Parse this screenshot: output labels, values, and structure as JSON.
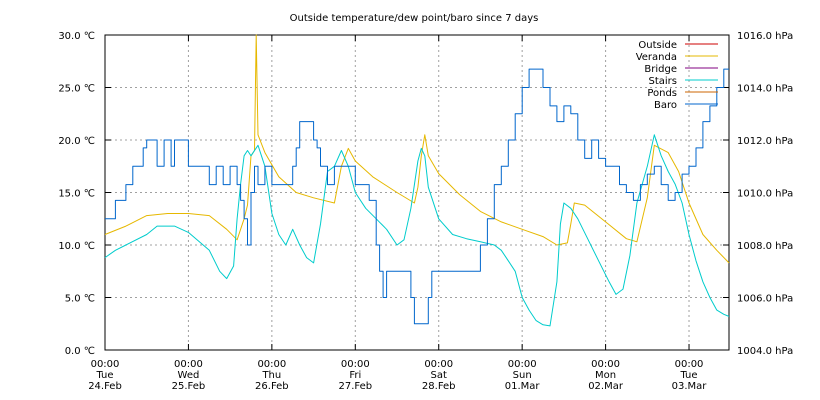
{
  "chart_data": {
    "type": "line",
    "title": "Outside temperature/dew point/baro since 7 days",
    "x_ticks": [
      {
        "t": 0,
        "time": "00:00",
        "day": "Tue",
        "date": "24.Feb"
      },
      {
        "t": 24,
        "time": "00:00",
        "day": "Wed",
        "date": "25.Feb"
      },
      {
        "t": 48,
        "time": "00:00",
        "day": "Thu",
        "date": "26.Feb"
      },
      {
        "t": 72,
        "time": "00:00",
        "day": "Fri",
        "date": "27.Feb"
      },
      {
        "t": 96,
        "time": "00:00",
        "day": "Sat",
        "date": "28.Feb"
      },
      {
        "t": 120,
        "time": "00:00",
        "day": "Sun",
        "date": "01.Mar"
      },
      {
        "t": 144,
        "time": "00:00",
        "day": "Mon",
        "date": "02.Mar"
      },
      {
        "t": 168,
        "time": "00:00",
        "day": "Tue",
        "date": "03.Mar"
      }
    ],
    "x_range_hours": [
      0,
      179.5
    ],
    "y_left": {
      "min": 0,
      "max": 30,
      "ticks": [
        0,
        5,
        10,
        15,
        20,
        25,
        30
      ],
      "labels": [
        "0.0 ℃",
        "5.0 ℃",
        "10.0 ℃",
        "15.0 ℃",
        "20.0 ℃",
        "25.0 ℃",
        "30.0 ℃"
      ]
    },
    "y_right": {
      "min": 1004,
      "max": 1016,
      "ticks": [
        1004,
        1006,
        1008,
        1010,
        1012,
        1014,
        1016
      ],
      "labels": [
        "1004.0 hPa",
        "1006.0 hPa",
        "1008.0 hPa",
        "1010.0 hPa",
        "1012.0 hPa",
        "1014.0 hPa",
        "1016.0 hPa"
      ]
    },
    "grid": true,
    "legend_position": "top-right",
    "series": [
      {
        "name": "Outside",
        "color": "#cc0000",
        "axis": "left",
        "values": []
      },
      {
        "name": "Veranda",
        "color": "#e6b800",
        "axis": "left",
        "values": [
          [
            0,
            11.0
          ],
          [
            6,
            11.8
          ],
          [
            12,
            12.8
          ],
          [
            18,
            13.0
          ],
          [
            24,
            13.0
          ],
          [
            30,
            12.8
          ],
          [
            35,
            11.5
          ],
          [
            38,
            10.5
          ],
          [
            40,
            12.5
          ],
          [
            41,
            13.8
          ],
          [
            42,
            18.5
          ],
          [
            43,
            19.0
          ],
          [
            43.5,
            30.0
          ],
          [
            44,
            20.5
          ],
          [
            46,
            18.8
          ],
          [
            50,
            16.5
          ],
          [
            55,
            15.0
          ],
          [
            60,
            14.5
          ],
          [
            66,
            14.0
          ],
          [
            68,
            17.5
          ],
          [
            70,
            19.2
          ],
          [
            72,
            18.0
          ],
          [
            77,
            16.5
          ],
          [
            84,
            15.0
          ],
          [
            89,
            14.0
          ],
          [
            90,
            15.5
          ],
          [
            91,
            18.5
          ],
          [
            92,
            20.5
          ],
          [
            93,
            18.5
          ],
          [
            96,
            16.8
          ],
          [
            102,
            14.8
          ],
          [
            108,
            13.2
          ],
          [
            114,
            12.2
          ],
          [
            120,
            11.5
          ],
          [
            126,
            10.8
          ],
          [
            130,
            10.0
          ],
          [
            133,
            10.2
          ],
          [
            134,
            12.0
          ],
          [
            135,
            14.0
          ],
          [
            138,
            13.8
          ],
          [
            144,
            12.2
          ],
          [
            150,
            10.6
          ],
          [
            153,
            10.3
          ],
          [
            156,
            14.5
          ],
          [
            158,
            19.5
          ],
          [
            162,
            18.8
          ],
          [
            165,
            17.0
          ],
          [
            168,
            14.0
          ],
          [
            172,
            11.0
          ],
          [
            176,
            9.5
          ],
          [
            179.5,
            8.3
          ]
        ]
      },
      {
        "name": "Bridge",
        "color": "#800080",
        "axis": "left",
        "values": []
      },
      {
        "name": "Stairs",
        "color": "#00cccc",
        "axis": "left",
        "values": [
          [
            0,
            8.8
          ],
          [
            3,
            9.5
          ],
          [
            6,
            10.0
          ],
          [
            12,
            11.0
          ],
          [
            15,
            11.8
          ],
          [
            20,
            11.8
          ],
          [
            24,
            11.2
          ],
          [
            30,
            9.5
          ],
          [
            33,
            7.5
          ],
          [
            35,
            6.8
          ],
          [
            37,
            8.0
          ],
          [
            38,
            12.5
          ],
          [
            39,
            15.8
          ],
          [
            40,
            18.5
          ],
          [
            41,
            19.0
          ],
          [
            42,
            18.5
          ],
          [
            44,
            19.5
          ],
          [
            46,
            17.5
          ],
          [
            48,
            13.0
          ],
          [
            50,
            11.0
          ],
          [
            52,
            10.0
          ],
          [
            54,
            11.5
          ],
          [
            56,
            10.0
          ],
          [
            58,
            8.8
          ],
          [
            60,
            8.3
          ],
          [
            62,
            12.0
          ],
          [
            64,
            17.0
          ],
          [
            66,
            17.5
          ],
          [
            68,
            19.0
          ],
          [
            70,
            17.5
          ],
          [
            72,
            15.0
          ],
          [
            75,
            13.5
          ],
          [
            78,
            12.5
          ],
          [
            81,
            11.5
          ],
          [
            84,
            10.0
          ],
          [
            86,
            10.5
          ],
          [
            88,
            13.5
          ],
          [
            90,
            18.0
          ],
          [
            91,
            19.2
          ],
          [
            92,
            18.5
          ],
          [
            93,
            15.5
          ],
          [
            96,
            12.5
          ],
          [
            100,
            11.0
          ],
          [
            104,
            10.6
          ],
          [
            108,
            10.3
          ],
          [
            112,
            10.0
          ],
          [
            114,
            9.5
          ],
          [
            116,
            8.5
          ],
          [
            118,
            7.5
          ],
          [
            120,
            5.0
          ],
          [
            122,
            3.8
          ],
          [
            124,
            2.8
          ],
          [
            126,
            2.4
          ],
          [
            128,
            2.3
          ],
          [
            130,
            6.5
          ],
          [
            131,
            12.0
          ],
          [
            132,
            14.0
          ],
          [
            134,
            13.5
          ],
          [
            136,
            12.5
          ],
          [
            139,
            10.5
          ],
          [
            142,
            8.5
          ],
          [
            145,
            6.5
          ],
          [
            147,
            5.3
          ],
          [
            149,
            5.8
          ],
          [
            151,
            9.0
          ],
          [
            153,
            14.0
          ],
          [
            156,
            17.5
          ],
          [
            158,
            20.5
          ],
          [
            160,
            18.5
          ],
          [
            162,
            17.0
          ],
          [
            164,
            15.8
          ],
          [
            166,
            14.0
          ],
          [
            168,
            11.0
          ],
          [
            170,
            8.5
          ],
          [
            172,
            6.5
          ],
          [
            174,
            5.0
          ],
          [
            176,
            3.8
          ],
          [
            178,
            3.4
          ],
          [
            179.5,
            3.2
          ]
        ]
      },
      {
        "name": "Ponds",
        "color": "#cc6600",
        "axis": "left",
        "values": []
      },
      {
        "name": "Baro",
        "color": "#0066cc",
        "axis": "right",
        "step": true,
        "values": [
          [
            0,
            1009.0
          ],
          [
            3,
            1009.7
          ],
          [
            6,
            1010.3
          ],
          [
            8,
            1011.0
          ],
          [
            11,
            1011.7
          ],
          [
            12,
            1012.0
          ],
          [
            15,
            1011.0
          ],
          [
            17,
            1012.0
          ],
          [
            19,
            1011.0
          ],
          [
            20,
            1012.0
          ],
          [
            24,
            1011.0
          ],
          [
            30,
            1010.3
          ],
          [
            32,
            1011.0
          ],
          [
            34,
            1010.3
          ],
          [
            36,
            1011.0
          ],
          [
            38,
            1010.3
          ],
          [
            39,
            1009.7
          ],
          [
            40,
            1009.0
          ],
          [
            41,
            1008.0
          ],
          [
            42,
            1010.0
          ],
          [
            43,
            1011.0
          ],
          [
            44,
            1010.3
          ],
          [
            46,
            1011.0
          ],
          [
            48,
            1010.3
          ],
          [
            54,
            1011.0
          ],
          [
            55,
            1011.7
          ],
          [
            56,
            1012.7
          ],
          [
            60,
            1012.0
          ],
          [
            61,
            1011.7
          ],
          [
            62,
            1011.0
          ],
          [
            64,
            1010.3
          ],
          [
            66,
            1011.0
          ],
          [
            72,
            1010.3
          ],
          [
            76,
            1009.7
          ],
          [
            78,
            1008.0
          ],
          [
            79,
            1007.0
          ],
          [
            80,
            1006.0
          ],
          [
            81,
            1007.0
          ],
          [
            88,
            1006.0
          ],
          [
            89,
            1005.0
          ],
          [
            93,
            1006.0
          ],
          [
            94,
            1007.0
          ],
          [
            108,
            1008.0
          ],
          [
            110,
            1009.0
          ],
          [
            112,
            1010.3
          ],
          [
            114,
            1011.0
          ],
          [
            116,
            1012.0
          ],
          [
            118,
            1013.0
          ],
          [
            120,
            1014.0
          ],
          [
            122,
            1014.7
          ],
          [
            126,
            1014.0
          ],
          [
            128,
            1013.3
          ],
          [
            130,
            1012.7
          ],
          [
            132,
            1013.3
          ],
          [
            134,
            1013.0
          ],
          [
            136,
            1012.0
          ],
          [
            138,
            1011.3
          ],
          [
            140,
            1012.0
          ],
          [
            142,
            1011.3
          ],
          [
            144,
            1011.0
          ],
          [
            148,
            1010.3
          ],
          [
            150,
            1010.0
          ],
          [
            152,
            1009.7
          ],
          [
            154,
            1010.3
          ],
          [
            156,
            1010.7
          ],
          [
            158,
            1011.0
          ],
          [
            160,
            1010.3
          ],
          [
            162,
            1009.7
          ],
          [
            164,
            1010.0
          ],
          [
            166,
            1010.7
          ],
          [
            168,
            1011.0
          ],
          [
            170,
            1011.7
          ],
          [
            172,
            1012.7
          ],
          [
            174,
            1013.3
          ],
          [
            176,
            1014.0
          ],
          [
            178,
            1014.7
          ],
          [
            179.5,
            1014.7
          ]
        ]
      }
    ]
  }
}
